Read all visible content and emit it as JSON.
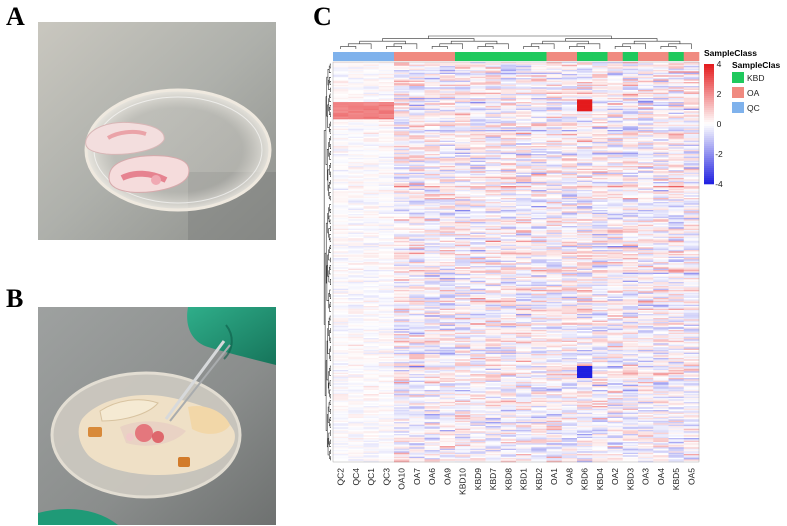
{
  "panels": {
    "a_label": "A",
    "b_label": "B",
    "c_label": "C"
  },
  "chart_data": {
    "type": "heatmap",
    "columns": [
      "QC2",
      "QC4",
      "QC1",
      "QC3",
      "OA10",
      "OA7",
      "OA6",
      "OA9",
      "KBD10",
      "KBD9",
      "KBD7",
      "KBD8",
      "KBD1",
      "KBD2",
      "OA1",
      "OA8",
      "KBD6",
      "KBD4",
      "OA2",
      "KBD3",
      "OA3",
      "OA4",
      "KBD5",
      "OA5"
    ],
    "column_classes": [
      "QC",
      "QC",
      "QC",
      "QC",
      "OA",
      "OA",
      "OA",
      "OA",
      "KBD",
      "KBD",
      "KBD",
      "KBD",
      "KBD",
      "KBD",
      "OA",
      "OA",
      "KBD",
      "KBD",
      "OA",
      "KBD",
      "OA",
      "OA",
      "KBD",
      "OA"
    ],
    "annotation_title": "SampleClass",
    "legend": {
      "title": "SampleClass",
      "entries": [
        {
          "label": "KBD",
          "color": "#1fc95d"
        },
        {
          "label": "OA",
          "color": "#f08a80"
        },
        {
          "label": "QC",
          "color": "#7fb2ec"
        }
      ]
    },
    "colorbar": {
      "ticks": [
        "4",
        "2",
        "0",
        "-2",
        "-4"
      ],
      "range": [
        -4,
        4
      ],
      "low_color": "#1f1fe0",
      "mid_color": "#ffffff",
      "high_color": "#e41a1c"
    },
    "row_count": 300
  }
}
